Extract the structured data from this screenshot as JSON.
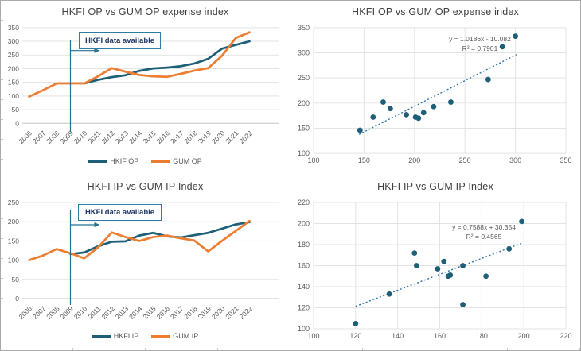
{
  "colors": {
    "hkfi_line": "#1E5F78",
    "gum_line": "#ED7D31",
    "scatter_point": "#1E5F78",
    "trendline": "#2E74A0",
    "gridline": "#E3E3E3",
    "axis_line": "#C6C6C6",
    "tick_label": "#595959",
    "title_text": "#404040",
    "annotation_border": "#2E7DA1",
    "annotation_text": "#1F3864",
    "annotation_line": "#24708F",
    "equation_text": "#595959",
    "panel_border": "#D9D9D9"
  },
  "chart_data": [
    {
      "type": "line",
      "title": "HKFI OP vs GUM OP expense index",
      "categories": [
        "2006",
        "2007",
        "2008",
        "2009",
        "2010",
        "2011",
        "2012",
        "2013",
        "2014",
        "2015",
        "2016",
        "2017",
        "2018",
        "2019",
        "2020",
        "2021",
        "2022"
      ],
      "series": [
        {
          "name": "HKIF OP",
          "color": "hkfi_line",
          "values": [
            null,
            null,
            null,
            null,
            146,
            159,
            169,
            176,
            192,
            201,
            204,
            209,
            219,
            236,
            273,
            287,
            300
          ]
        },
        {
          "name": "GUM OP",
          "color": "gum_line",
          "values": [
            98,
            121,
            146,
            146,
            146,
            172,
            202,
            189,
            177,
            172,
            170,
            181,
            193,
            202,
            247,
            312,
            333
          ]
        }
      ],
      "ylim": [
        0,
        350
      ],
      "ytick": 50,
      "grid": "horizontal",
      "legend_position": "bottom",
      "annotation": {
        "text": "HKFI data available",
        "at_category": "2009"
      }
    },
    {
      "type": "scatter",
      "title": "HKFI OP vs GUM OP expense index",
      "points": [
        [
          146,
          146
        ],
        [
          159,
          172
        ],
        [
          169,
          202
        ],
        [
          176,
          189
        ],
        [
          192,
          177
        ],
        [
          201,
          172
        ],
        [
          204,
          170
        ],
        [
          209,
          181
        ],
        [
          219,
          193
        ],
        [
          236,
          202
        ],
        [
          273,
          247
        ],
        [
          287,
          312
        ],
        [
          300,
          333
        ]
      ],
      "xlim": [
        100,
        350
      ],
      "xtick": 50,
      "ylim": [
        100,
        350
      ],
      "ytick": 50,
      "grid": "both",
      "trendline": {
        "style": "dotted",
        "slope": 1.0186,
        "intercept": -10.082,
        "x_start": 145,
        "x_end": 301
      },
      "equation": "y = 1.0186x - 10.082",
      "r_squared": "R² = 0.7901"
    },
    {
      "type": "line",
      "title": "HKFI IP vs GUM IP Index",
      "categories": [
        "2006",
        "2007",
        "2008",
        "2009",
        "2010",
        "2011",
        "2012",
        "2013",
        "2014",
        "2015",
        "2016",
        "2017",
        "2018",
        "2019",
        "2020",
        "2021",
        "2022"
      ],
      "series": [
        {
          "name": "HKFI IP",
          "color": "hkfi_line",
          "values": [
            null,
            null,
            null,
            116,
            120,
            136,
            148,
            149,
            164,
            171,
            162,
            159,
            165,
            171,
            182,
            193,
            199
          ]
        },
        {
          "name": "GUM IP",
          "color": "gum_line",
          "values": [
            100,
            112,
            129,
            118,
            105,
            133,
            172,
            160,
            150,
            160,
            164,
            157,
            151,
            123,
            150,
            176,
            202
          ]
        }
      ],
      "ylim": [
        0,
        250
      ],
      "ytick": 50,
      "grid": "horizontal",
      "legend_position": "bottom",
      "annotation": {
        "text": "HKFI data available",
        "at_category": "2009"
      }
    },
    {
      "type": "scatter",
      "title": "HKFI IP vs GUM IP Index",
      "points": [
        [
          120,
          105
        ],
        [
          136,
          133
        ],
        [
          148,
          172
        ],
        [
          149,
          160
        ],
        [
          164,
          150
        ],
        [
          171,
          160
        ],
        [
          162,
          164
        ],
        [
          159,
          157
        ],
        [
          165,
          151
        ],
        [
          171,
          123
        ],
        [
          182,
          150
        ],
        [
          193,
          176
        ],
        [
          199,
          202
        ]
      ],
      "xlim": [
        100,
        220
      ],
      "xtick": 20,
      "ylim": [
        100,
        220
      ],
      "ytick": 20,
      "grid": "both",
      "trendline": {
        "style": "dotted",
        "slope": 0.7588,
        "intercept": 30.354,
        "x_start": 120,
        "x_end": 199
      },
      "equation": "y = 0.7588x + 30.354",
      "r_squared": "R² = 0.4565"
    }
  ]
}
